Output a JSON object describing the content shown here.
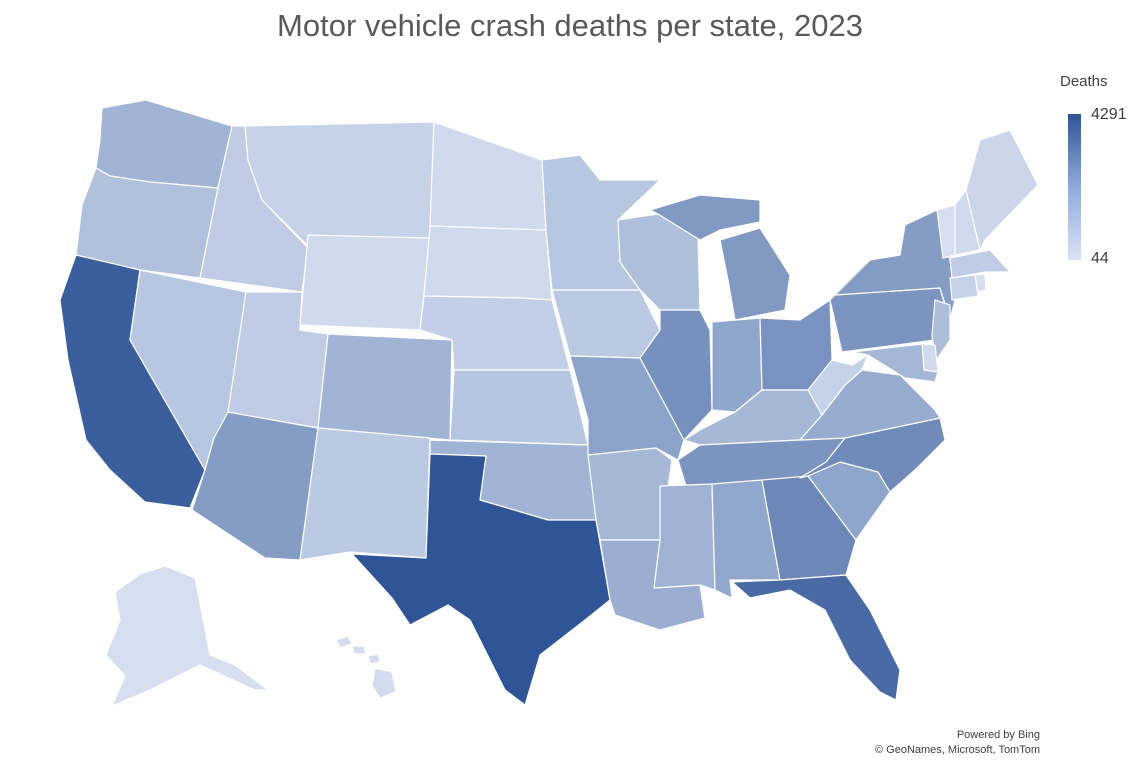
{
  "title": "Motor vehicle crash deaths per state, 2023",
  "legend": {
    "title": "Deaths",
    "max_label": "4291",
    "min_label": "44",
    "max_color": "#2f5597",
    "min_color": "#dae3f3"
  },
  "credits": {
    "line1": "Powered by Bing",
    "line2": "© GeoNames, Microsoft, TomTom"
  },
  "states": [
    {
      "code": "WA",
      "level": 0.33
    },
    {
      "code": "OR",
      "level": 0.24
    },
    {
      "code": "CA",
      "level": 0.93
    },
    {
      "code": "ID",
      "level": 0.16
    },
    {
      "code": "NV",
      "level": 0.2
    },
    {
      "code": "AZ",
      "level": 0.5
    },
    {
      "code": "UT",
      "level": 0.16
    },
    {
      "code": "MT",
      "level": 0.12
    },
    {
      "code": "WY",
      "level": 0.06
    },
    {
      "code": "CO",
      "level": 0.33
    },
    {
      "code": "NM",
      "level": 0.18
    },
    {
      "code": "ND",
      "level": 0.06
    },
    {
      "code": "SD",
      "level": 0.06
    },
    {
      "code": "NE",
      "level": 0.14
    },
    {
      "code": "KS",
      "level": 0.21
    },
    {
      "code": "OK",
      "level": 0.33
    },
    {
      "code": "TX",
      "level": 1.0
    },
    {
      "code": "MN",
      "level": 0.2
    },
    {
      "code": "IA",
      "level": 0.18
    },
    {
      "code": "MO",
      "level": 0.45
    },
    {
      "code": "AR",
      "level": 0.3
    },
    {
      "code": "LA",
      "level": 0.37
    },
    {
      "code": "WI",
      "level": 0.25
    },
    {
      "code": "IL",
      "level": 0.58
    },
    {
      "code": "MI",
      "level": 0.52
    },
    {
      "code": "IN",
      "level": 0.43
    },
    {
      "code": "OH",
      "level": 0.57
    },
    {
      "code": "KY",
      "level": 0.3
    },
    {
      "code": "TN",
      "level": 0.55
    },
    {
      "code": "MS",
      "level": 0.34
    },
    {
      "code": "AL",
      "level": 0.42
    },
    {
      "code": "GA",
      "level": 0.64
    },
    {
      "code": "FL",
      "level": 0.85
    },
    {
      "code": "SC",
      "level": 0.44
    },
    {
      "code": "NC",
      "level": 0.62
    },
    {
      "code": "VA",
      "level": 0.39
    },
    {
      "code": "WV",
      "level": 0.12
    },
    {
      "code": "PA",
      "level": 0.55
    },
    {
      "code": "NY",
      "level": 0.5
    },
    {
      "code": "ME",
      "level": 0.09
    },
    {
      "code": "VT",
      "level": 0.03
    },
    {
      "code": "NH",
      "level": 0.06
    },
    {
      "code": "MA",
      "level": 0.16
    },
    {
      "code": "CT",
      "level": 0.12
    },
    {
      "code": "RI",
      "level": 0.03
    },
    {
      "code": "NJ",
      "level": 0.27
    },
    {
      "code": "DE",
      "level": 0.06
    },
    {
      "code": "MD",
      "level": 0.31
    },
    {
      "code": "AK",
      "level": 0.03
    },
    {
      "code": "HI",
      "level": 0.04
    }
  ]
}
